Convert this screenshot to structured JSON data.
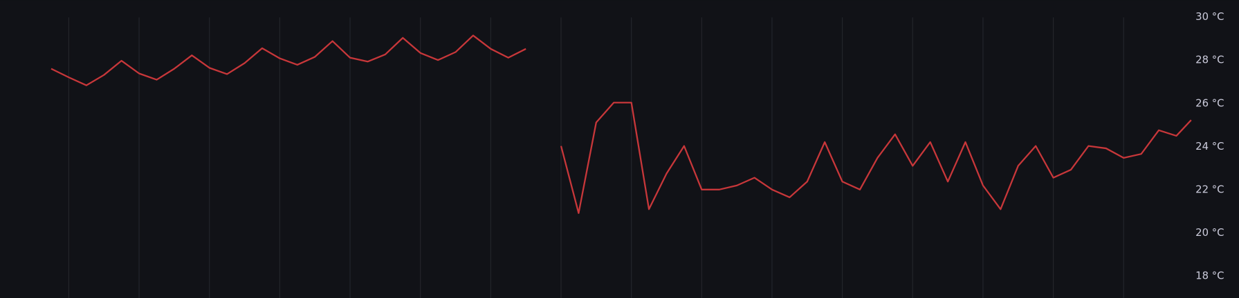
{
  "chart_data": {
    "type": "line",
    "x": [
      -0.25,
      0,
      0.25,
      0.5,
      0.75,
      1,
      1.25,
      1.5,
      1.75,
      2,
      2.25,
      2.5,
      2.75,
      3,
      3.25,
      3.5,
      3.75,
      4,
      4.25,
      4.5,
      4.75,
      5,
      5.25,
      5.5,
      5.75,
      6,
      6.25,
      6.5,
      6.75,
      7,
      7.25,
      7.5,
      7.75,
      8,
      8.25,
      8.5,
      8.75,
      9,
      9.25,
      9.5,
      9.75,
      10,
      10.25,
      10.5,
      10.75,
      11,
      11.25,
      11.5,
      11.75,
      12,
      12.25,
      12.5,
      12.75,
      13,
      13.25,
      13.5,
      13.75,
      14,
      14.25,
      14.5,
      14.75,
      15,
      15.25,
      15.5,
      15.75,
      15.96
    ],
    "values": [
      27.62,
      27.22,
      26.85,
      27.33,
      27.99,
      27.4,
      27.11,
      27.62,
      28.24,
      27.66,
      27.37,
      27.88,
      28.57,
      28.1,
      27.8,
      28.17,
      28.9,
      28.13,
      27.95,
      28.28,
      29.05,
      28.35,
      28.02,
      28.39,
      29.16,
      28.54,
      28.13,
      28.54,
      null,
      24.04,
      20.93,
      25.13,
      26.05,
      26.05,
      21.11,
      22.76,
      24.04,
      22.02,
      22.02,
      22.21,
      22.57,
      22.02,
      21.66,
      22.39,
      24.22,
      22.39,
      22.02,
      23.49,
      24.58,
      23.12,
      24.22,
      22.39,
      24.22,
      22.21,
      21.11,
      23.12,
      24.04,
      22.57,
      22.94,
      24.04,
      23.93,
      23.49,
      23.67,
      24.77,
      24.51,
      25.24
    ],
    "color": "#c8373a",
    "xlim": [
      -0.978,
      16
    ],
    "xticks": [
      0,
      1,
      2,
      3,
      4,
      5,
      6,
      7,
      8,
      9,
      10,
      11,
      12,
      13,
      14,
      15
    ],
    "ylim": [
      17,
      30.8
    ],
    "yticks": [
      {
        "value": 18,
        "label": "18 °C"
      },
      {
        "value": 20,
        "label": "20 °C"
      },
      {
        "value": 22,
        "label": "22 °C"
      },
      {
        "value": 24,
        "label": "24 °C"
      },
      {
        "value": 26,
        "label": "26 °C"
      },
      {
        "value": 28,
        "label": "28 °C"
      },
      {
        "value": 30,
        "label": "30 °C"
      }
    ],
    "grid": true
  }
}
